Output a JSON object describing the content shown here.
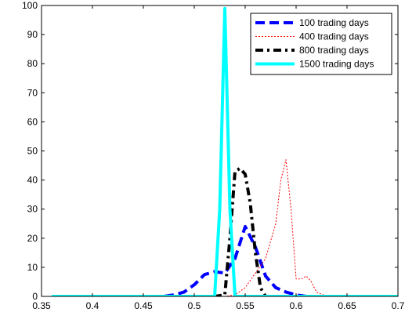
{
  "chart_data": {
    "type": "line",
    "title": "",
    "xlabel": "",
    "ylabel": "",
    "xlim": [
      0.35,
      0.7
    ],
    "ylim": [
      0,
      100
    ],
    "xticks": [
      0.35,
      0.4,
      0.45,
      0.5,
      0.55,
      0.6,
      0.65,
      0.7
    ],
    "xtick_labels": [
      "0.35",
      "0.4",
      "0.45",
      "0.5",
      "0.55",
      "0.6",
      "0.65",
      "0.7"
    ],
    "yticks": [
      0,
      10,
      20,
      30,
      40,
      50,
      60,
      70,
      80,
      90,
      100
    ],
    "ytick_labels": [
      "0",
      "10",
      "20",
      "30",
      "40",
      "50",
      "60",
      "70",
      "80",
      "90",
      "100"
    ],
    "grid": false,
    "legend_position": "top-right",
    "series": [
      {
        "name": "100 trading days",
        "color": "#0000ff",
        "style": "dashed",
        "points": [
          [
            0.36,
            0
          ],
          [
            0.47,
            0
          ],
          [
            0.48,
            0.5
          ],
          [
            0.49,
            1.5
          ],
          [
            0.5,
            4
          ],
          [
            0.51,
            7.5
          ],
          [
            0.52,
            8.5
          ],
          [
            0.53,
            8
          ],
          [
            0.54,
            13
          ],
          [
            0.55,
            24
          ],
          [
            0.56,
            17
          ],
          [
            0.57,
            7
          ],
          [
            0.58,
            3
          ],
          [
            0.59,
            1.5
          ],
          [
            0.6,
            0.5
          ],
          [
            0.61,
            0
          ],
          [
            0.7,
            0
          ]
        ]
      },
      {
        "name": "400 trading days",
        "color": "#ff0000",
        "style": "dotted",
        "points": [
          [
            0.36,
            0
          ],
          [
            0.53,
            0
          ],
          [
            0.54,
            0.5
          ],
          [
            0.55,
            3
          ],
          [
            0.56,
            8
          ],
          [
            0.57,
            13
          ],
          [
            0.58,
            25
          ],
          [
            0.585,
            40
          ],
          [
            0.59,
            47
          ],
          [
            0.595,
            30
          ],
          [
            0.6,
            6
          ],
          [
            0.605,
            6
          ],
          [
            0.61,
            7
          ],
          [
            0.615,
            5
          ],
          [
            0.62,
            1.5
          ],
          [
            0.63,
            0
          ],
          [
            0.7,
            0
          ]
        ]
      },
      {
        "name": "800 trading days",
        "color": "#000000",
        "style": "dashdot",
        "points": [
          [
            0.36,
            0
          ],
          [
            0.52,
            0
          ],
          [
            0.53,
            0.5
          ],
          [
            0.535,
            20
          ],
          [
            0.54,
            43
          ],
          [
            0.545,
            44
          ],
          [
            0.55,
            42
          ],
          [
            0.555,
            32
          ],
          [
            0.56,
            15
          ],
          [
            0.565,
            3
          ],
          [
            0.57,
            0
          ],
          [
            0.7,
            0
          ]
        ]
      },
      {
        "name": "1500 trading days",
        "color": "#00ffff",
        "style": "solid",
        "points": [
          [
            0.36,
            0
          ],
          [
            0.52,
            0
          ],
          [
            0.525,
            30
          ],
          [
            0.53,
            99
          ],
          [
            0.535,
            30
          ],
          [
            0.54,
            0
          ],
          [
            0.7,
            0
          ]
        ]
      }
    ]
  }
}
